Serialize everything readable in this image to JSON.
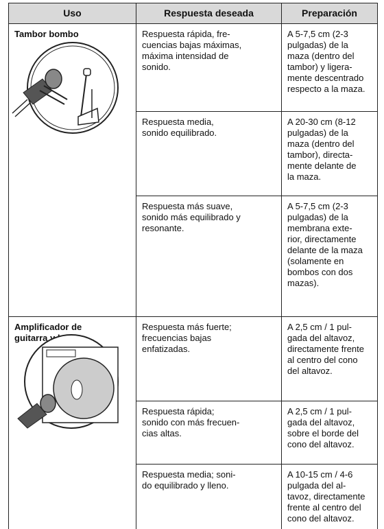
{
  "header": {
    "columns": [
      "Uso",
      "Respuesta deseada",
      "Preparación"
    ]
  },
  "table": {
    "groups": [
      {
        "use": [
          "Tambor bombo"
        ],
        "rows": [
          {
            "response": [
              "Respuesta rápida, fre-",
              "cuencias bajas máximas,",
              "máxima intensidad de",
              "sonido."
            ],
            "preparation": [
              "A 5-7,5 cm (2-3",
              "pulgadas) de la",
              "maza (dentro del",
              "tambor) y ligera-",
              "mente descentrado",
              "respecto a la maza."
            ]
          },
          {
            "response": [
              "Respuesta media,",
              "sonido equilibrado."
            ],
            "preparation": [
              "A 20-30 cm (8-12",
              "pulgadas) de la",
              "maza (dentro del",
              "tambor), directa-",
              "mente delante de",
              "la maza."
            ]
          },
          {
            "response": [
              "Respuesta más suave,",
              "sonido más equilibrado y",
              "resonante."
            ],
            "preparation": [
              "A 5-7,5 cm (2-3",
              "pulgadas) de la",
              "membrana exte-",
              "rior, directamente",
              "delante de la maza",
              "(solamente en",
              "bombos con dos",
              "mazas)."
            ]
          }
        ]
      },
      {
        "use": [
          "Amplificador de",
          "guitarra y bajo"
        ],
        "rows": [
          {
            "response": [
              "Respuesta más fuerte;",
              "frecuencias bajas",
              "enfatizadas."
            ],
            "preparation": [
              "A 2,5 cm / 1 pul-",
              "gada del altavoz,",
              "directamente frente",
              "al centro del cono",
              "del altavoz."
            ]
          },
          {
            "response": [
              "Respuesta rápida;",
              "sonido con más frecuen-",
              "cias altas."
            ],
            "preparation": [
              "A 2,5 cm / 1 pul-",
              "gada del altavoz,",
              "sobre el borde del",
              "cono del altavoz."
            ]
          },
          {
            "response": [
              "Respuesta media; soni-",
              "do equilibrado y lleno."
            ],
            "preparation": [
              "A 10-15 cm / 4-6",
              "pulgada del al-",
              "tavoz, directamente",
              "frente al centro del",
              "cono del altavoz."
            ]
          }
        ]
      }
    ]
  }
}
